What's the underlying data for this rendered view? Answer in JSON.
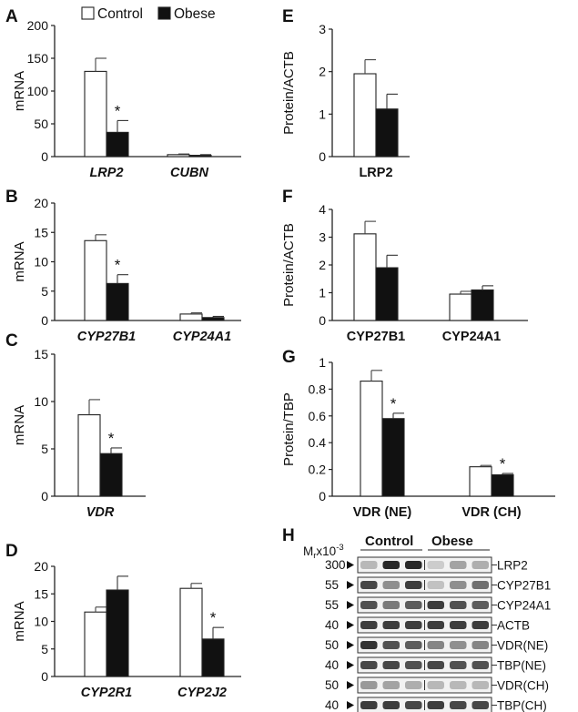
{
  "colors": {
    "control": "#ffffff",
    "obese": "#111111",
    "axis": "#222222"
  },
  "legend": {
    "control": "Control",
    "obese": "Obese"
  },
  "chart_data": [
    {
      "id": "A",
      "type": "bar",
      "letter": "A",
      "ylabel": "mRNA",
      "ylim": [
        0,
        200
      ],
      "yticks": [
        0,
        50,
        100,
        150,
        200
      ],
      "italic": true,
      "categories": [
        "LRP2",
        "CUBN"
      ],
      "series": [
        {
          "name": "Control",
          "values": [
            130,
            3
          ],
          "errors": [
            20,
            1
          ]
        },
        {
          "name": "Obese",
          "values": [
            37,
            2
          ],
          "errors": [
            18,
            1
          ]
        }
      ],
      "significant": [
        [
          1,
          0
        ]
      ],
      "sig_symbol": "*",
      "legend": "top-left"
    },
    {
      "id": "B",
      "type": "bar",
      "letter": "B",
      "ylabel": "mRNA",
      "ylim": [
        0,
        20
      ],
      "yticks": [
        0,
        5,
        10,
        15,
        20
      ],
      "italic": true,
      "categories": [
        "CYP27B1",
        "CYP24A1"
      ],
      "series": [
        {
          "name": "Control",
          "values": [
            13.6,
            1.1
          ],
          "errors": [
            1.0,
            0.2
          ]
        },
        {
          "name": "Obese",
          "values": [
            6.3,
            0.5
          ],
          "errors": [
            1.5,
            0.2
          ]
        }
      ],
      "significant": [
        [
          1,
          0
        ]
      ],
      "sig_symbol": "*"
    },
    {
      "id": "C",
      "type": "bar",
      "letter": "C",
      "ylabel": "mRNA",
      "ylim": [
        0,
        15
      ],
      "yticks": [
        0,
        5,
        10,
        15
      ],
      "italic": true,
      "categories": [
        "VDR"
      ],
      "series": [
        {
          "name": "Control",
          "values": [
            8.6
          ],
          "errors": [
            1.6
          ]
        },
        {
          "name": "Obese",
          "values": [
            4.5
          ],
          "errors": [
            0.6
          ]
        }
      ],
      "significant": [
        [
          1,
          0
        ]
      ],
      "sig_symbol": "*"
    },
    {
      "id": "D",
      "type": "bar",
      "letter": "D",
      "ylabel": "mRNA",
      "ylim": [
        0,
        20
      ],
      "yticks": [
        0,
        5,
        10,
        15,
        20
      ],
      "italic": true,
      "categories": [
        "CYP2R1",
        "CYP2J2"
      ],
      "series": [
        {
          "name": "Control",
          "values": [
            11.7,
            16.0
          ],
          "errors": [
            0.9,
            0.9
          ]
        },
        {
          "name": "Obese",
          "values": [
            15.7,
            6.8
          ],
          "errors": [
            2.5,
            2.1
          ]
        }
      ],
      "significant": [
        [
          1,
          1
        ]
      ],
      "sig_symbol": "*"
    },
    {
      "id": "E",
      "type": "bar",
      "letter": "E",
      "ylabel": "Protein/ACTB",
      "ylim": [
        0,
        3
      ],
      "yticks": [
        0,
        1,
        2,
        3
      ],
      "italic": false,
      "categories": [
        "LRP2"
      ],
      "series": [
        {
          "name": "Control",
          "values": [
            1.95
          ],
          "errors": [
            0.33
          ]
        },
        {
          "name": "Obese",
          "values": [
            1.12
          ],
          "errors": [
            0.35
          ]
        }
      ],
      "significant": [],
      "sig_symbol": "*"
    },
    {
      "id": "F",
      "type": "bar",
      "letter": "F",
      "ylabel": "Protein/ACTB",
      "ylim": [
        0,
        4
      ],
      "yticks": [
        0,
        1,
        2,
        3,
        4
      ],
      "italic": false,
      "categories": [
        "CYP27B1",
        "CYP24A1"
      ],
      "series": [
        {
          "name": "Control",
          "values": [
            3.12,
            0.95
          ],
          "errors": [
            0.45,
            0.1
          ]
        },
        {
          "name": "Obese",
          "values": [
            1.9,
            1.1
          ],
          "errors": [
            0.45,
            0.15
          ]
        }
      ],
      "significant": [],
      "sig_symbol": "*"
    },
    {
      "id": "G",
      "type": "bar",
      "letter": "G",
      "ylabel": "Protein/TBP",
      "ylim": [
        0,
        1
      ],
      "yticks": [
        "0",
        "0.2",
        "0.4",
        "0.6",
        "0.8",
        "1"
      ],
      "italic": false,
      "categories": [
        "VDR (NE)",
        "VDR  (CH)"
      ],
      "series": [
        {
          "name": "Control",
          "values": [
            0.86,
            0.22
          ],
          "errors": [
            0.08,
            0.01
          ]
        },
        {
          "name": "Obese",
          "values": [
            0.58,
            0.16
          ],
          "errors": [
            0.04,
            0.01
          ]
        }
      ],
      "significant": [
        [
          1,
          0
        ],
        [
          1,
          1
        ]
      ],
      "sig_symbol": "*"
    }
  ],
  "blot": {
    "letter": "H",
    "mw_label": "M",
    "mw_sub": "r",
    "mw_unit": "x10",
    "mw_exp": "-3",
    "header_control": "Control",
    "header_obese": "Obese",
    "rows": [
      {
        "mw": "300",
        "label": "LRP2",
        "intensity": [
          0.25,
          0.95,
          0.95,
          0.15,
          0.35,
          0.3
        ]
      },
      {
        "mw": "55",
        "label": "CYP27B1",
        "intensity": [
          0.8,
          0.45,
          0.85,
          0.2,
          0.45,
          0.6
        ]
      },
      {
        "mw": "55",
        "label": "CYP24A1",
        "intensity": [
          0.75,
          0.55,
          0.7,
          0.85,
          0.75,
          0.7
        ]
      },
      {
        "mw": "40",
        "label": "ACTB",
        "intensity": [
          0.85,
          0.85,
          0.85,
          0.85,
          0.85,
          0.85
        ]
      },
      {
        "mw": "50",
        "label": "VDR(NE)",
        "intensity": [
          0.9,
          0.75,
          0.7,
          0.5,
          0.45,
          0.5
        ]
      },
      {
        "mw": "40",
        "label": "TBP(NE)",
        "intensity": [
          0.8,
          0.8,
          0.75,
          0.8,
          0.75,
          0.75
        ]
      },
      {
        "mw": "50",
        "label": "VDR(CH)",
        "intensity": [
          0.4,
          0.35,
          0.3,
          0.25,
          0.25,
          0.25
        ]
      },
      {
        "mw": "40",
        "label": "TBP(CH)",
        "intensity": [
          0.85,
          0.85,
          0.8,
          0.85,
          0.8,
          0.8
        ]
      }
    ]
  }
}
